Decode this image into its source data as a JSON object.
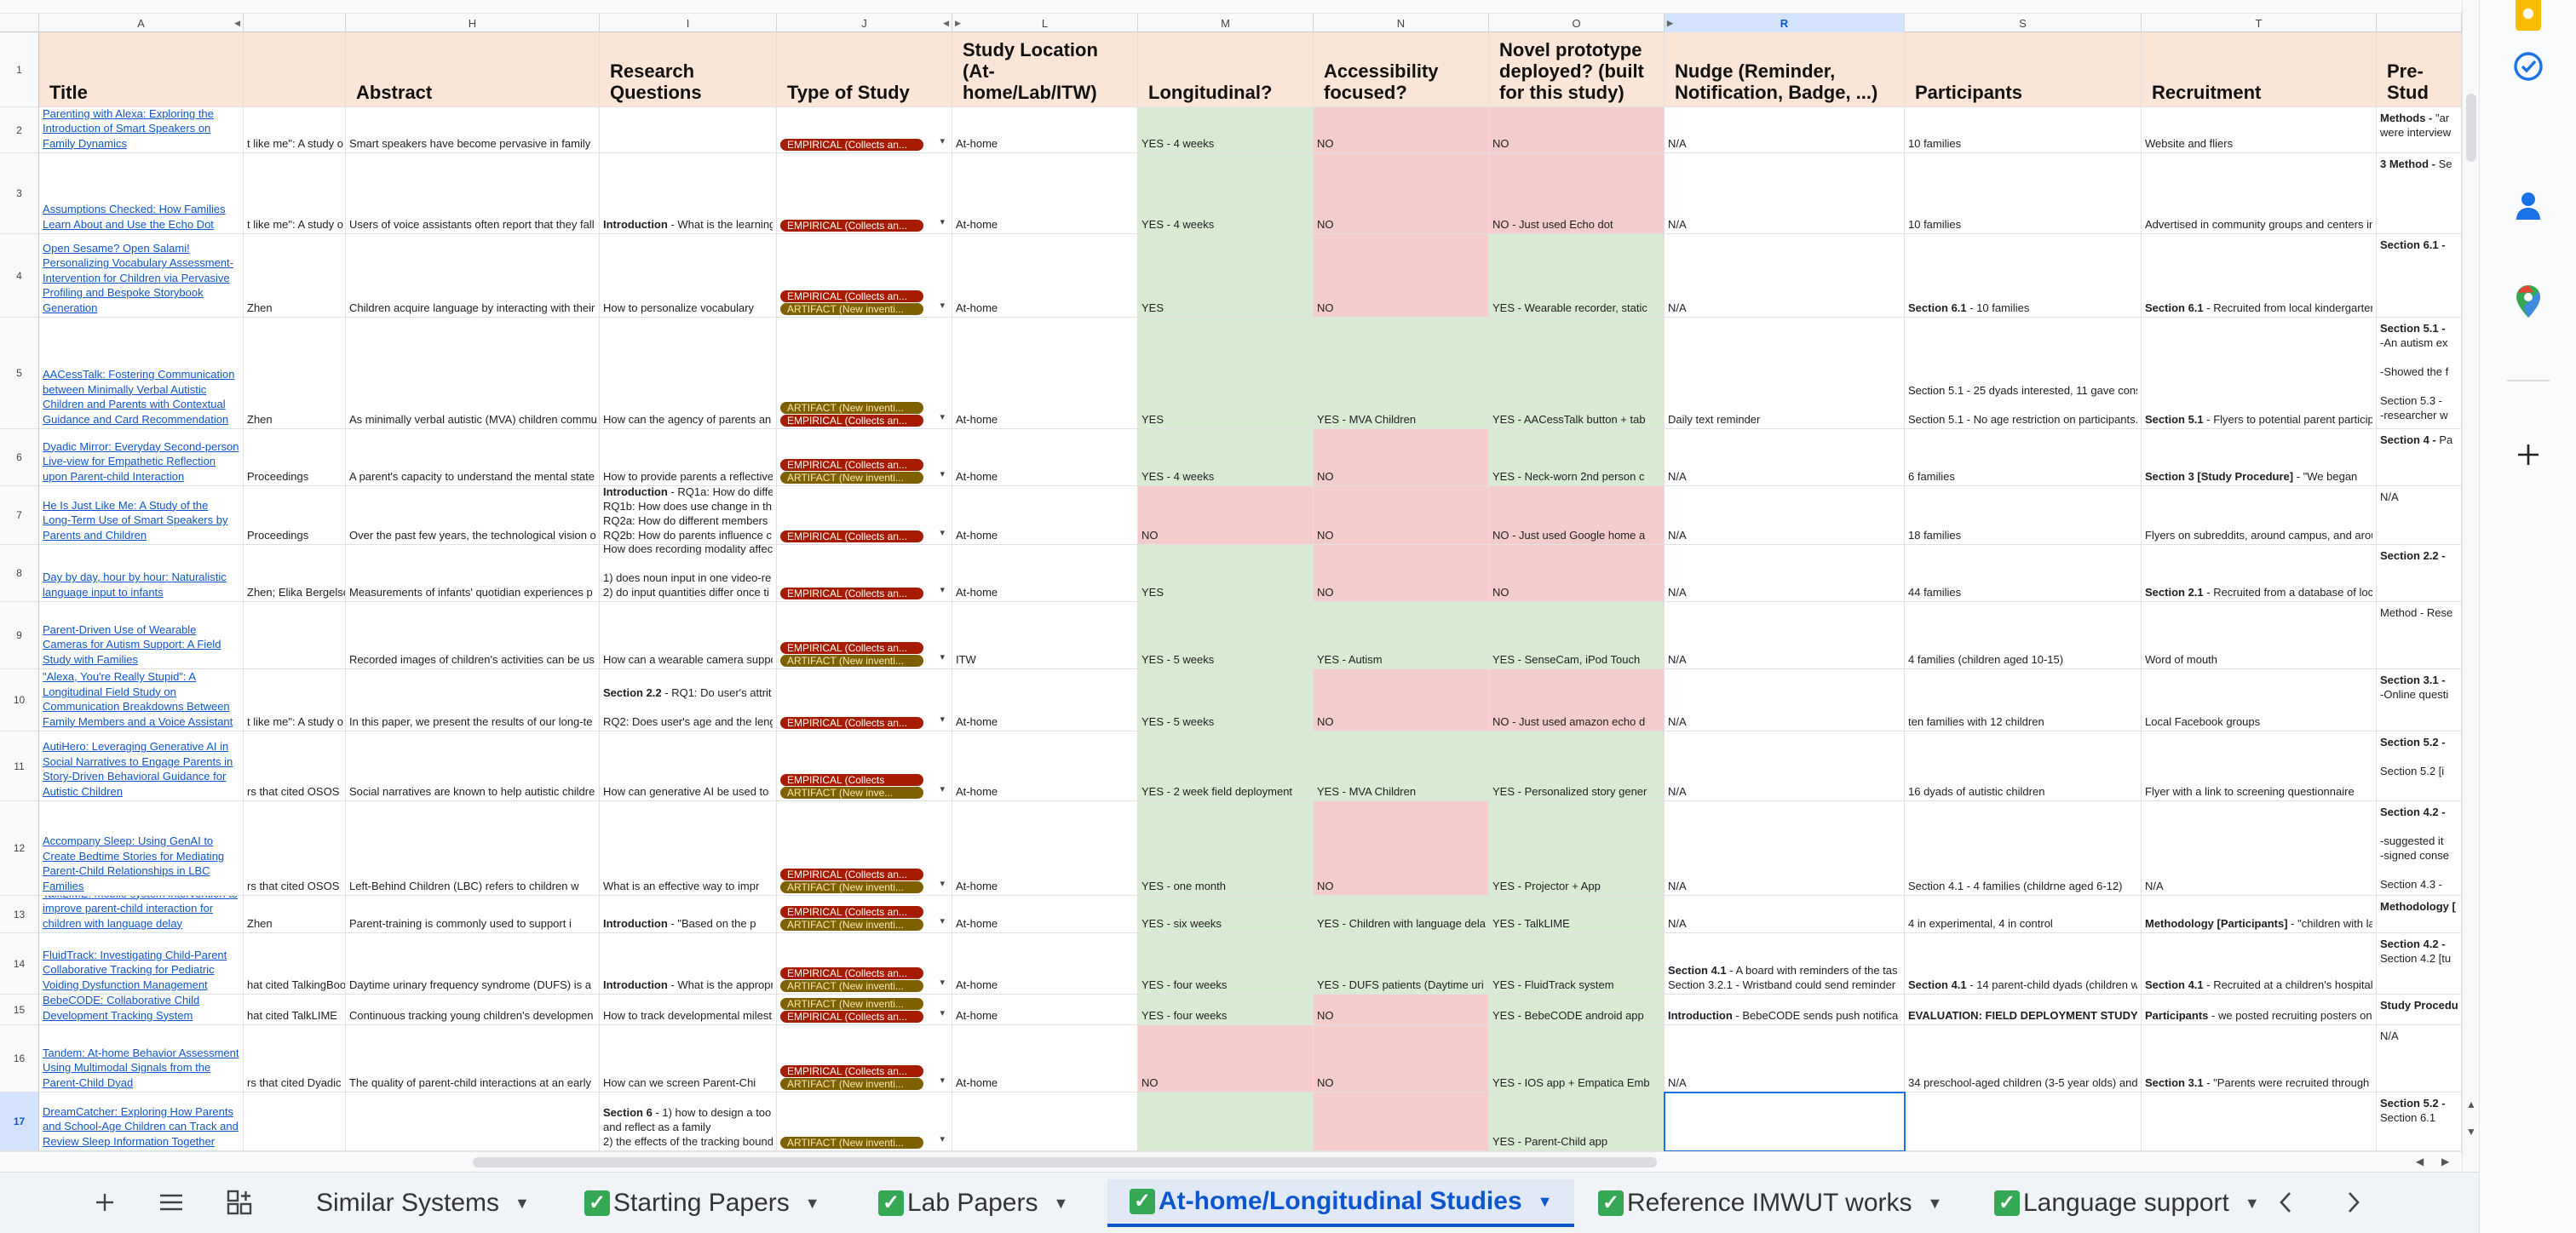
{
  "columns": [
    "A",
    "",
    "H",
    "I",
    "J",
    "L",
    "M",
    "N",
    "O",
    "R",
    "S",
    "T",
    ""
  ],
  "selected_column": "R",
  "row_numbers": [
    "1",
    "2",
    "3",
    "4",
    "5",
    "6",
    "7",
    "8",
    "9",
    "10",
    "11",
    "12",
    "13",
    "14",
    "15",
    "16",
    "17"
  ],
  "selected_row": "17",
  "headers": {
    "title": "Title",
    "abstract": "Abstract",
    "research_questions": "Research Questions",
    "type_of_study": "Type of Study",
    "study_location": "Study Location (At-home/Lab/ITW)",
    "longitudinal": "Longitudinal?",
    "accessibility": "Accessibility focused?",
    "novel_prototype": "Novel prototype deployed? (built for this study)",
    "nudge": "Nudge (Reminder, Notification, Badge, ...)",
    "participants": "Participants",
    "recruitment": "Recruitment",
    "pre_study": "Pre-Stud"
  },
  "chip_labels": {
    "empirical": "EMPIRICAL (Collects an...",
    "artifact": "ARTIFACT (New inventi...",
    "empirical_short": "EMPIRICAL (Collects",
    "artifact_short": "ARTIFACT (New inve..."
  },
  "rows": [
    {
      "title": "Parenting with Alexa: Exploring the Introduction of Smart Speakers on Family Dynamics",
      "colG": "t like me\": A study o",
      "abstract": "Smart speakers have become pervasive in family",
      "rq_bold": "",
      "rq": "",
      "location": "At-home",
      "longitudinal": "YES - 4 weeks",
      "accessibility": "NO",
      "prototype": "NO",
      "nudge_bold": "",
      "nudge": "N/A",
      "participants_bold": "",
      "participants": "10 families",
      "recruitment_bold": "",
      "recruitment": "Website and fliers",
      "pre_bold": "Methods - ",
      "pre": "\"ar\nwere interview"
    },
    {
      "title": "Assumptions Checked: How Families Learn About and Use the Echo Dot",
      "colG": "t like me\": A study o",
      "abstract": "Users of voice assistants often report that they fall",
      "rq_bold": "Introduction",
      "rq": " - What is the learning",
      "location": "At-home",
      "longitudinal": "YES - 4 weeks",
      "accessibility": "NO",
      "prototype": "NO - Just used Echo dot",
      "nudge_bold": "",
      "nudge": "N/A",
      "participants_bold": "",
      "participants": "10 families",
      "recruitment_bold": "",
      "recruitment": "Advertised in community groups and centers in",
      "pre_bold": "3 Method - ",
      "pre": "Se"
    },
    {
      "title": "Open Sesame? Open Salami! Personalizing Vocabulary Assessment-Intervention for Children via Pervasive Profiling and Bespoke Storybook Generation",
      "colG": "Zhen",
      "abstract": "Children acquire language by interacting with their",
      "rq_bold": "",
      "rq": "How to personalize vocabulary",
      "location": "At-home",
      "longitudinal": "YES",
      "accessibility": "NO",
      "prototype": "YES - Wearable recorder, static",
      "nudge_bold": "",
      "nudge": "N/A",
      "participants_bold": "Section 6.1",
      "participants": " - 10 families",
      "recruitment_bold": "Section 6.1",
      "recruitment": " - Recruited from local kindergarten",
      "pre_bold": "Section 6.1 - ",
      "pre": ""
    },
    {
      "title": "AACessTalk: Fostering Communication between Minimally Verbal Autistic Children and Parents with Contextual Guidance and Card Recommendation",
      "colG": "Zhen",
      "abstract": "As minimally verbal autistic (MVA) children commu",
      "rq_bold": "",
      "rq": "How can the agency of parents an",
      "location": "At-home",
      "longitudinal": "YES",
      "accessibility": "YES - MVA Children",
      "prototype": "YES - AACessTalk button + tab",
      "nudge_bold": "",
      "nudge": "Daily text reminder",
      "participants_bold": "",
      "participants": "Section 5.1 - 25 dyads interested, 11 gave cons\n\nSection 5.1 - No age restriction on participants.",
      "recruitment_bold": "Section 5.1",
      "recruitment": " - Flyers to potential parent particip",
      "pre_bold": "Section 5.1 - ",
      "pre": "\n-An autism ex\n\n-Showed the f\n\nSection 5.3 -\n-researcher w"
    },
    {
      "title": "Dyadic Mirror: Everyday Second-person Live-view for Empathetic Reflection upon Parent-child Interaction",
      "colG": "Proceedings",
      "abstract": "A parent's capacity to understand the mental state",
      "rq_bold": "",
      "rq": "How to provide parents a reflective",
      "location": "At-home",
      "longitudinal": "YES - 4 weeks",
      "accessibility": "NO",
      "prototype": "YES - Neck-worn 2nd person c",
      "nudge_bold": "",
      "nudge": "N/A",
      "participants_bold": "",
      "participants": "6 families",
      "recruitment_bold": "Section 3 [Study Procedure]",
      "recruitment": " - \"We began",
      "pre_bold": "Section 4 - ",
      "pre": "Pa"
    },
    {
      "title": "He Is Just Like Me: A Study of the Long-Term Use of Smart Speakers by Parents and Children",
      "colG": "Proceedings",
      "abstract": "Over the past few years, the technological vision o",
      "rq_bold": "Introduction",
      "rq": " - RQ1a: How do diffe\nRQ1b: How does use change in th\nRQ2a: How do different members\nRQ2b: How do parents influence c",
      "location": "At-home",
      "longitudinal": "NO",
      "accessibility": "NO",
      "prototype": "NO - Just used Google home a",
      "nudge_bold": "",
      "nudge": "N/A",
      "participants_bold": "",
      "participants": "18 families",
      "recruitment_bold": "",
      "recruitment": "Flyers on subreddits, around campus, and arou",
      "pre_bold": "",
      "pre": "N/A"
    },
    {
      "title": "Day by day, hour by hour: Naturalistic language input to infants",
      "colG": "Zhen; Elika Bergelso",
      "abstract": "Measurements of infants' quotidian experiences p",
      "rq_bold": "",
      "rq": "How does recording modality affec\n\n1) does noun input in one video-re\n2) do input quantities differ once ti",
      "location": "At-home",
      "longitudinal": "YES",
      "accessibility": "NO",
      "prototype": "NO",
      "nudge_bold": "",
      "nudge": "N/A",
      "participants_bold": "",
      "participants": "44 families",
      "recruitment_bold": "Section 2.1",
      "recruitment": " - Recruited from a database of loc",
      "pre_bold": "Section 2.2 - ",
      "pre": ""
    },
    {
      "title": "Parent-Driven Use of Wearable Cameras for Autism Support: A Field Study with Families",
      "colG": "",
      "abstract": "Recorded images of children's activities can be us",
      "rq_bold": "",
      "rq": "How can a wearable camera suppo",
      "location": "ITW",
      "longitudinal": "YES - 5 weeks",
      "accessibility": "YES - Autism",
      "prototype": "YES - SenseCam, iPod Touch",
      "nudge_bold": "",
      "nudge": "N/A",
      "participants_bold": "",
      "participants": "4 families (children aged 10-15)",
      "recruitment_bold": "",
      "recruitment": "Word of mouth",
      "pre_bold": "",
      "pre": "Method - Rese"
    },
    {
      "title": "\"Alexa, You're Really Stupid\": A Longitudinal Field Study on Communication Breakdowns Between Family Members and a Voice Assistant",
      "colG": "t like me\": A study o",
      "abstract": "In this paper, we present the results of our long-te",
      "rq_bold": "Section 2.2",
      "rq": " - RQ1: Do user's attrit\n\nRQ2: Does user's age and the leng",
      "location": "At-home",
      "longitudinal": "YES - 5 weeks",
      "accessibility": "NO",
      "prototype": "NO - Just used amazon echo d",
      "nudge_bold": "",
      "nudge": "N/A",
      "participants_bold": "",
      "participants": "ten families with 12 children",
      "recruitment_bold": "",
      "recruitment": "Local Facebook groups",
      "pre_bold": "Section 3.1 - ",
      "pre": "\n-Online questi"
    },
    {
      "title": "AutiHero: Leveraging Generative AI in Social Narratives to Engage Parents in Story-Driven Behavioral Guidance for Autistic Children",
      "colG": "rs that cited OSOS",
      "abstract": "Social narratives are known to help autistic childre",
      "rq_bold": "",
      "rq": "How can generative AI be used to",
      "location": "At-home",
      "longitudinal": "YES - 2 week field deployment",
      "accessibility": "YES - MVA Children",
      "prototype": "YES - Personalized story gener",
      "nudge_bold": "",
      "nudge": "N/A",
      "participants_bold": "",
      "participants": "16 dyads of autistic children",
      "recruitment_bold": "",
      "recruitment": "Flyer with a link to screening questionnaire",
      "pre_bold": "Section 5.2 - ",
      "pre": "\n\nSection 5.2 [i"
    },
    {
      "title": "Accompany Sleep: Using GenAI to Create Bedtime Stories for Mediating Parent-Child Relationships in LBC Families",
      "colG": "rs that cited OSOS",
      "abstract": "Left-Behind Children (LBC) refers to children w",
      "rq_bold": "",
      "rq": "What is an effective way to impr",
      "location": "At-home",
      "longitudinal": "YES - one month",
      "accessibility": "NO",
      "prototype": "YES - Projector + App",
      "nudge_bold": "",
      "nudge": "N/A",
      "participants_bold": "",
      "participants": "Section 4.1 - 4 families (childrne aged 6-12)",
      "recruitment_bold": "",
      "recruitment": "N/A",
      "pre_bold": "Section 4.2 - ",
      "pre": "\n\n-suggested it\n-signed conse\n\nSection 4.3 -"
    },
    {
      "title": "TalkLIME: mobile system intervention to improve parent-child interaction for children with language delay",
      "colG": "Zhen",
      "abstract": "Parent-training is commonly used to support i",
      "rq_bold": "Introduction",
      "rq": " - \"Based on the p",
      "location": "At-home",
      "longitudinal": "YES - six weeks",
      "accessibility": "YES - Children with language dela",
      "prototype": "YES - TalkLIME",
      "nudge_bold": "",
      "nudge": "N/A",
      "participants_bold": "",
      "participants": "4 in experimental, 4 in control",
      "recruitment_bold": "Methodology [Participants]",
      "recruitment": " - \"children with la",
      "pre_bold": "Methodology [",
      "pre": ""
    },
    {
      "title": "FluidTrack: Investigating Child-Parent Collaborative Tracking for Pediatric Voiding Dysfunction Management",
      "colG": "hat cited TalkingBoo",
      "abstract": "Daytime urinary frequency syndrome (DUFS) is a",
      "rq_bold": "Introduction",
      "rq": " - What is the appropr",
      "location": "At-home",
      "longitudinal": "YES - four weeks",
      "accessibility": "YES - DUFS patients (Daytime uri",
      "prototype": "YES - FluidTrack system",
      "nudge_bold": "Section 4.1",
      "nudge": " - A board with reminders of the tas\nSection 3.2.1 - Wristband could send reminder",
      "participants_bold": "Section 4.1",
      "participants": " - 14 parent-child dyads (children w",
      "recruitment_bold": "Section 4.1",
      "recruitment": " - Recruited at a children's hospital",
      "pre_bold": "Section 4.2 - ",
      "pre": "\nSection 4.2 [tu"
    },
    {
      "title": "BebeCODE: Collaborative Child Development Tracking System",
      "colG": "hat cited TalkLIME",
      "abstract": "Continuous tracking young children's developmen",
      "rq_bold": "",
      "rq": "How to track developmental milest",
      "location": "At-home",
      "longitudinal": "YES - four weeks",
      "accessibility": "NO",
      "prototype": "YES - BebeCODE android app",
      "nudge_bold": "Introduction",
      "nudge": " - BebeCODE sends push notifica",
      "participants_bold": "EVALUATION: FIELD DEPLOYMENT STUDY",
      "participants": "",
      "recruitment_bold": "Participants",
      "recruitment": " - we posted recruiting posters on",
      "pre_bold": "Study Procedu",
      "pre": ""
    },
    {
      "title": "Tandem: At-home Behavior Assessment Using Multimodal Signals from the Parent-Child Dyad",
      "colG": "rs that cited Dyadic",
      "abstract": "The quality of parent-child interactions at an early",
      "rq_bold": "",
      "rq": "How can we screen Parent-Chi",
      "location": "At-home",
      "longitudinal": "NO",
      "accessibility": "NO",
      "prototype": "YES - IOS app + Empatica Emb",
      "nudge_bold": "",
      "nudge": "N/A",
      "participants_bold": "",
      "participants": "34 preschool-aged children (3-5 year olds) and",
      "recruitment_bold": "Section 3.1",
      "recruitment": " - \"Parents were recruited through a",
      "pre_bold": "",
      "pre": "N/A"
    },
    {
      "title": "DreamCatcher: Exploring How Parents and School-Age Children can Track and Review Sleep Information Together",
      "colG": "",
      "abstract": "",
      "rq_bold": "Section 6",
      "rq": " - 1) how to design a too\nand reflect as a family\n2) the effects of the tracking bound",
      "location": "",
      "longitudinal": "",
      "accessibility": "",
      "prototype": "YES - Parent-Child app",
      "nudge_bold": "",
      "nudge": "",
      "participants_bold": "",
      "participants": "",
      "recruitment_bold": "",
      "recruitment": "",
      "pre_bold": "Section 5.2 - ",
      "pre": "\nSection 6.1"
    }
  ],
  "sheet_tabs": [
    {
      "label": "Similar Systems",
      "checked": false,
      "active": false
    },
    {
      "label": "Starting Papers",
      "checked": true,
      "active": false
    },
    {
      "label": "Lab Papers",
      "checked": true,
      "active": false
    },
    {
      "label": "At-home/Longitudinal Studies",
      "checked": true,
      "active": true
    },
    {
      "label": "Reference IMWUT works",
      "checked": true,
      "active": false
    },
    {
      "label": "Language support",
      "checked": true,
      "active": false
    }
  ],
  "icons": {
    "add_sheet": "plus-icon",
    "all_sheets": "menu-icon",
    "explore": "explore-icon",
    "nav_left": "chevron-left-icon",
    "nav_right": "chevron-right-icon",
    "side_keep": "keep-icon",
    "side_tasks": "tasks-icon",
    "side_contacts": "contacts-icon",
    "side_maps": "maps-icon",
    "side_addons": "plus-icon"
  },
  "colors": {
    "header_fill": "#fbe5d6",
    "yes_fill": "#d9ead3",
    "no_fill": "#f4cccc",
    "empirical_chip": "#a61c00",
    "artifact_chip": "#7f6000",
    "accent": "#0b57d0"
  }
}
